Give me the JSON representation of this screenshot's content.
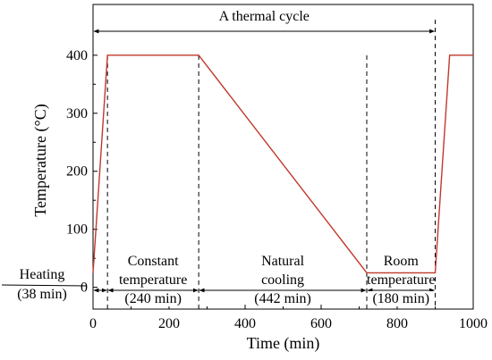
{
  "chart_data": {
    "type": "line",
    "title": "",
    "xlabel": "Time (min)",
    "ylabel": "Temperature (°C)",
    "xlim": [
      0,
      1000
    ],
    "ylim": [
      -37.5,
      487.5
    ],
    "grid": false,
    "legend": "none",
    "x_ticks": [
      0,
      200,
      400,
      600,
      800,
      1000
    ],
    "y_ticks": [
      0,
      100,
      200,
      300,
      400
    ],
    "series": [
      {
        "color": "#c0392b",
        "x": [
          0,
          38,
          278,
          720,
          900,
          938,
          1000
        ],
        "y": [
          25,
          400,
          400,
          25,
          25,
          400,
          400
        ]
      }
    ],
    "annotations": {
      "cycle": {
        "label": "A thermal cycle",
        "x_start": 0,
        "x_end": 900
      },
      "dividers": [
        38,
        278,
        720,
        900
      ],
      "phases": [
        {
          "lines": [
            "Heating",
            "(38 min)"
          ],
          "x_start": 0,
          "x_end": 38
        },
        {
          "lines": [
            "Constant",
            "temperature",
            "(240 min)"
          ],
          "x_start": 38,
          "x_end": 278
        },
        {
          "lines": [
            "Natural",
            "cooling",
            "(442 min)"
          ],
          "x_start": 278,
          "x_end": 720
        },
        {
          "lines": [
            "Room",
            "temperature",
            "(180 min)"
          ],
          "x_start": 720,
          "x_end": 900
        }
      ]
    }
  }
}
